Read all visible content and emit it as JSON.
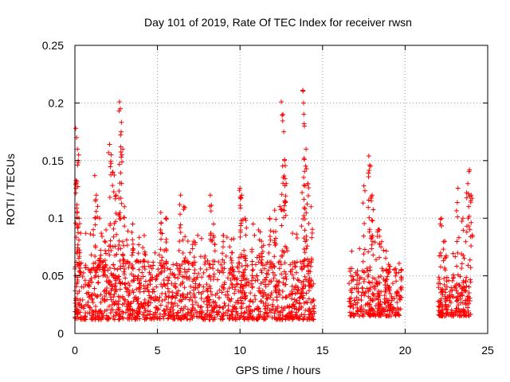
{
  "chart_data": {
    "type": "scatter",
    "title": "Day 101 of 2019, Rate Of TEC Index for receiver rwsn",
    "xlabel": "GPS time / hours",
    "ylabel": "ROTI / TECUs",
    "xlim": [
      0,
      25
    ],
    "ylim": [
      0,
      0.25
    ],
    "x_ticks": [
      "0",
      "5",
      "10",
      "15",
      "20",
      "25"
    ],
    "y_ticks": [
      "0",
      "0.05",
      "0.1",
      "0.15",
      "0.2",
      "0.25"
    ],
    "grid": true,
    "marker": "+",
    "color": "#ff0000",
    "series": [
      {
        "name": "ROTI",
        "segments": [
          {
            "x_start": 0.0,
            "x_end": 14.5,
            "baseline": [
              0.012,
              0.055
            ]
          },
          {
            "x_start": 16.6,
            "x_end": 19.8,
            "baseline": [
              0.015,
              0.05
            ]
          },
          {
            "x_start": 22.0,
            "x_end": 24.0,
            "baseline": [
              0.015,
              0.045
            ]
          }
        ],
        "peaks": [
          [
            0.05,
            0.178
          ],
          [
            0.1,
            0.17
          ],
          [
            0.15,
            0.16
          ],
          [
            0.2,
            0.15
          ],
          [
            0.25,
            0.1
          ],
          [
            0.3,
            0.07
          ],
          [
            1.2,
            0.137
          ],
          [
            1.3,
            0.12
          ],
          [
            1.5,
            0.1
          ],
          [
            1.8,
            0.08
          ],
          [
            2.1,
            0.164
          ],
          [
            2.2,
            0.155
          ],
          [
            2.3,
            0.14
          ],
          [
            2.5,
            0.12
          ],
          [
            2.7,
            0.201
          ],
          [
            2.75,
            0.195
          ],
          [
            2.8,
            0.175
          ],
          [
            2.9,
            0.16
          ],
          [
            3.0,
            0.11
          ],
          [
            3.5,
            0.095
          ],
          [
            4.2,
            0.085
          ],
          [
            5.2,
            0.105
          ],
          [
            5.5,
            0.1
          ],
          [
            6.4,
            0.12
          ],
          [
            6.6,
            0.11
          ],
          [
            7.2,
            0.08
          ],
          [
            8.2,
            0.12
          ],
          [
            8.4,
            0.095
          ],
          [
            9.0,
            0.085
          ],
          [
            9.5,
            0.07
          ],
          [
            10.0,
            0.126
          ],
          [
            10.1,
            0.12
          ],
          [
            10.3,
            0.1
          ],
          [
            10.8,
            0.095
          ],
          [
            11.3,
            0.08
          ],
          [
            11.8,
            0.1
          ],
          [
            12.1,
            0.107
          ],
          [
            12.5,
            0.201
          ],
          [
            12.6,
            0.19
          ],
          [
            12.65,
            0.175
          ],
          [
            12.7,
            0.15
          ],
          [
            12.8,
            0.13
          ],
          [
            13.8,
            0.211
          ],
          [
            13.85,
            0.2
          ],
          [
            13.9,
            0.18
          ],
          [
            14.0,
            0.16
          ],
          [
            14.1,
            0.13
          ],
          [
            14.3,
            0.11
          ],
          [
            17.5,
            0.128
          ],
          [
            17.8,
            0.154
          ],
          [
            17.9,
            0.145
          ],
          [
            18.0,
            0.12
          ],
          [
            18.4,
            0.09
          ],
          [
            19.0,
            0.06
          ],
          [
            22.2,
            0.1
          ],
          [
            22.4,
            0.08
          ],
          [
            23.2,
            0.126
          ],
          [
            23.5,
            0.1
          ],
          [
            23.8,
            0.13
          ],
          [
            23.9,
            0.142
          ],
          [
            24.0,
            0.12
          ]
        ]
      }
    ]
  }
}
